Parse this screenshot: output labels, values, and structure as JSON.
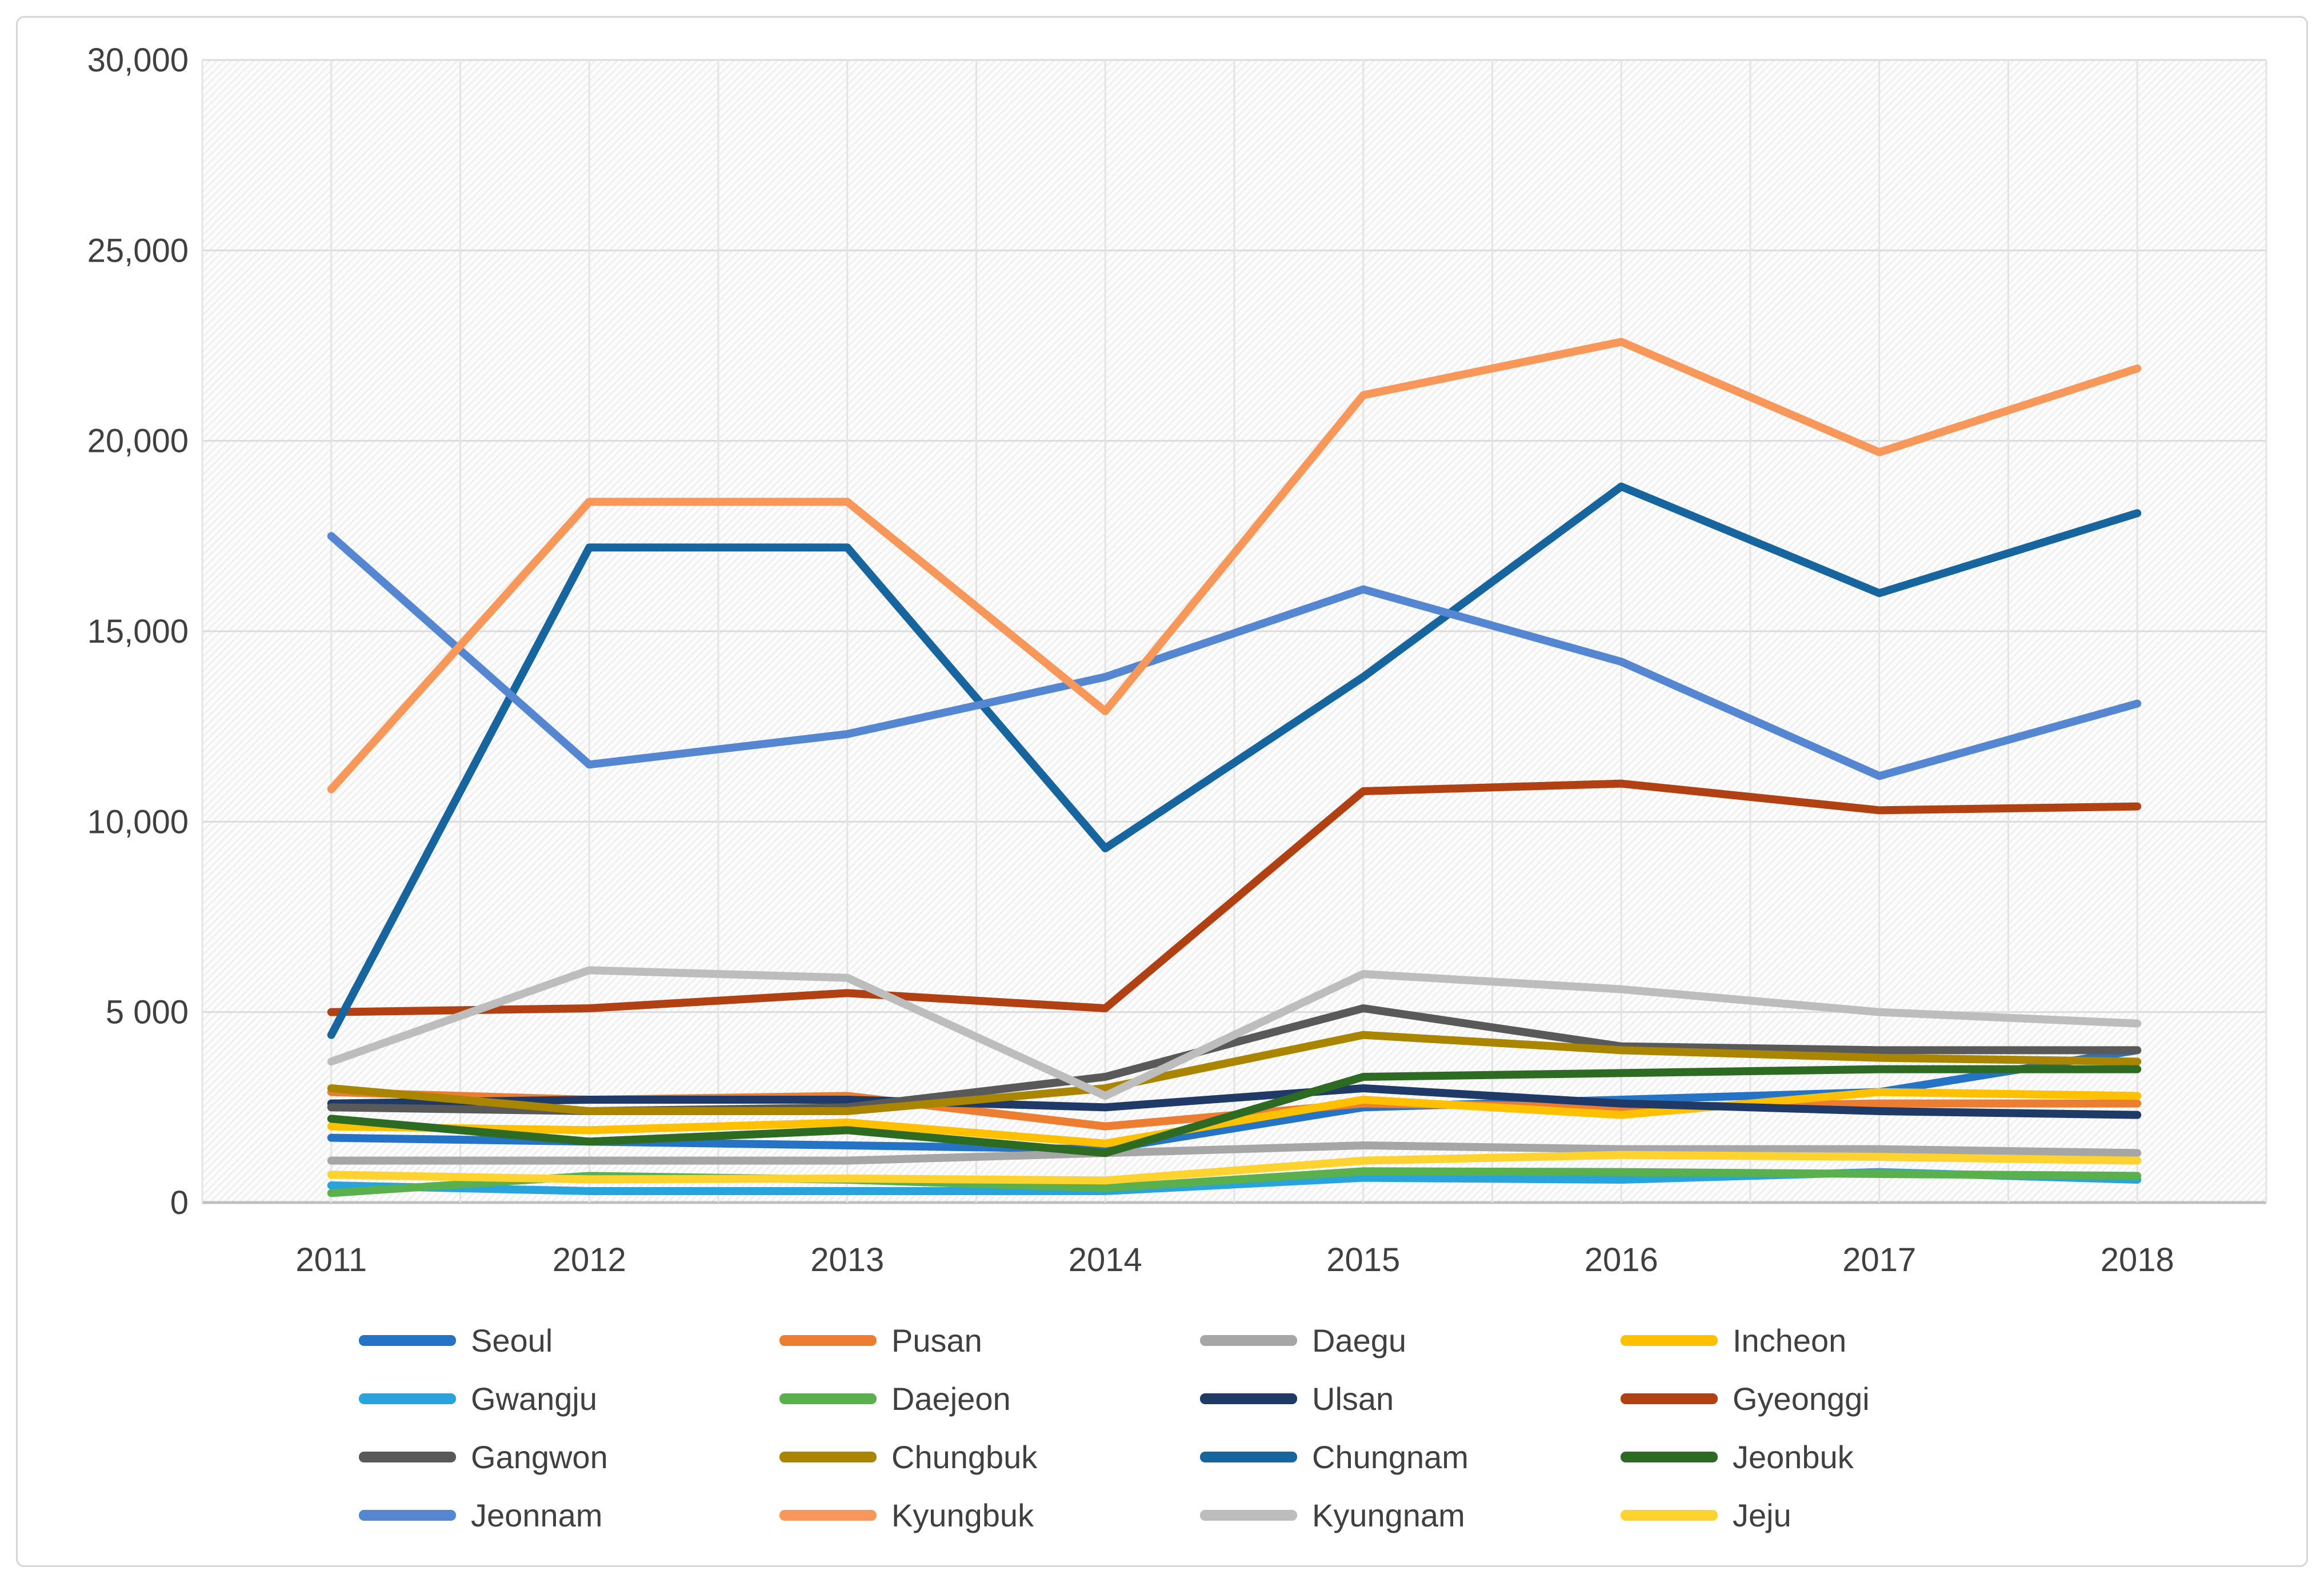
{
  "chart_data": {
    "type": "line",
    "title": "",
    "xlabel": "",
    "ylabel": "",
    "categories": [
      "2011",
      "2012",
      "2013",
      "2014",
      "2015",
      "2016",
      "2017",
      "2018"
    ],
    "y_ticks": [
      "30,000",
      "25,000",
      "20,000",
      "15,000",
      "10,000",
      "5 000",
      "0"
    ],
    "y_tick_values": [
      30000,
      25000,
      20000,
      15000,
      10000,
      5000,
      0
    ],
    "ylim": [
      0,
      30000
    ],
    "grid": {
      "horizontal": true,
      "vertical": true
    },
    "legend_position": "bottom",
    "plot_background": "hatched",
    "series": [
      {
        "name": "Seoul",
        "color": "#2573C4",
        "values": [
          1700,
          1600,
          1500,
          1400,
          2500,
          2700,
          2900,
          4000
        ]
      },
      {
        "name": "Pusan",
        "color": "#ED7D31",
        "values": [
          2900,
          2700,
          2800,
          2000,
          2600,
          2500,
          2600,
          2600
        ]
      },
      {
        "name": "Daegu",
        "color": "#A6A6A6",
        "values": [
          1100,
          1100,
          1100,
          1300,
          1500,
          1400,
          1400,
          1300
        ]
      },
      {
        "name": "Incheon",
        "color": "#FFC000",
        "values": [
          2000,
          1900,
          2100,
          1550,
          2700,
          2300,
          2900,
          2800
        ]
      },
      {
        "name": "Gwangju",
        "color": "#29A3DC",
        "values": [
          450,
          300,
          300,
          300,
          650,
          600,
          800,
          600
        ]
      },
      {
        "name": "Daejeon",
        "color": "#5AB04D",
        "values": [
          250,
          700,
          600,
          380,
          820,
          800,
          750,
          700
        ]
      },
      {
        "name": "Ulsan",
        "color": "#1F3A67",
        "values": [
          2600,
          2700,
          2700,
          2500,
          3000,
          2600,
          2400,
          2300
        ]
      },
      {
        "name": "Gyeonggi",
        "color": "#B14112",
        "values": [
          5000,
          5100,
          5500,
          5100,
          10800,
          11000,
          10300,
          10400
        ]
      },
      {
        "name": "Gangwon",
        "color": "#595959",
        "values": [
          2500,
          2400,
          2500,
          3300,
          5100,
          4100,
          4000,
          4000
        ]
      },
      {
        "name": "Chungbuk",
        "color": "#A98500",
        "values": [
          3000,
          2400,
          2400,
          3000,
          4400,
          4000,
          3800,
          3700
        ]
      },
      {
        "name": "Chungnam",
        "color": "#17659E",
        "values": [
          4400,
          17200,
          17200,
          9300,
          13800,
          18800,
          16000,
          18100
        ]
      },
      {
        "name": "Jeonbuk",
        "color": "#2D6B22",
        "values": [
          2200,
          1600,
          1900,
          1300,
          3300,
          3400,
          3500,
          3500
        ]
      },
      {
        "name": "Jeonnam",
        "color": "#5586D2",
        "values": [
          17500,
          11500,
          12300,
          13800,
          16100,
          14200,
          11200,
          13100
        ]
      },
      {
        "name": "Kyungbuk",
        "color": "#F8975A",
        "values": [
          10850,
          18400,
          18400,
          12900,
          21200,
          22600,
          19700,
          21900
        ]
      },
      {
        "name": "Kyungnam",
        "color": "#BDBDBD",
        "values": [
          3700,
          6100,
          5900,
          2800,
          6000,
          5600,
          5000,
          4700
        ]
      },
      {
        "name": "Jeju",
        "color": "#FFD32F",
        "values": [
          730,
          610,
          630,
          580,
          1100,
          1250,
          1200,
          1100
        ]
      }
    ]
  }
}
